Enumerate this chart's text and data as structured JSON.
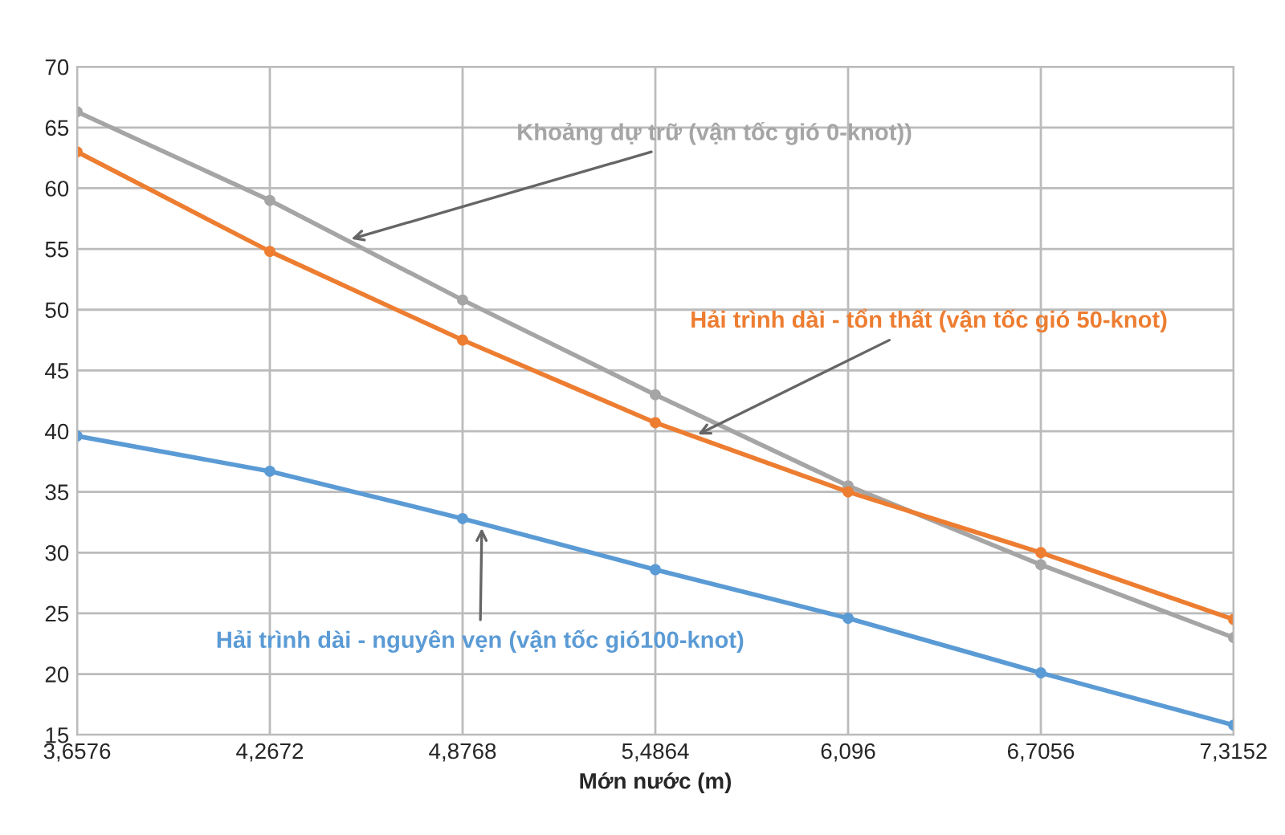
{
  "chart_data": {
    "type": "line",
    "xlabel": "Mớn nước (m)",
    "categories": [
      "3,6576",
      "4,2672",
      "4,8768",
      "5,4864",
      "6,096",
      "6,7056",
      "7,3152"
    ],
    "series": [
      {
        "name": "Khoảng dự trữ (vận tốc gió 0-knot))",
        "color": "#a5a5a5",
        "values": [
          66.3,
          59,
          50.8,
          43,
          35.5,
          29,
          23
        ]
      },
      {
        "name": "Hải trình dài - tổn thất (vận tốc gió 50-knot)",
        "color": "#ed7d31",
        "values": [
          63,
          54.8,
          47.5,
          40.7,
          35,
          30,
          24.5
        ]
      },
      {
        "name": "Hải trình dài - nguyên vẹn (vận tốc gió100-knot)",
        "color": "#5b9bd5",
        "values": [
          39.6,
          36.7,
          32.8,
          28.6,
          24.6,
          20.1,
          15.8
        ]
      }
    ],
    "ylim": [
      15,
      70
    ],
    "yticks": [
      15,
      20,
      25,
      30,
      35,
      40,
      45,
      50,
      55,
      60,
      65,
      70
    ],
    "grid": true,
    "marker": "circle",
    "line_style": "solid",
    "legend": false
  }
}
